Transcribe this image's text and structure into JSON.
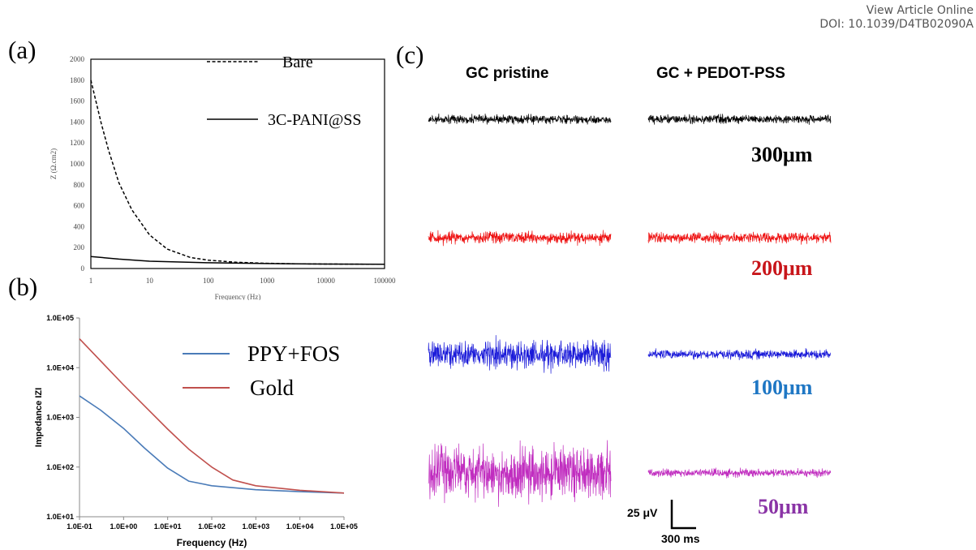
{
  "header": {
    "view_article": "View Article Online",
    "doi": "DOI: 10.1039/D4TB02090A"
  },
  "panels": {
    "a": "(a)",
    "b": "(b)",
    "c": "(c)"
  },
  "chart_data": [
    {
      "panel": "a",
      "type": "line",
      "xscale": "log",
      "xlabel": "Frequency (Hz)",
      "ylabel": "Z (Ω.cm2)",
      "xlim": [
        1,
        100000
      ],
      "ylim": [
        0,
        2000
      ],
      "xticks": [
        1,
        10,
        100,
        1000,
        10000,
        100000
      ],
      "xtick_labels": [
        "1",
        "10",
        "100",
        "1000",
        "10000",
        "100000"
      ],
      "yticks": [
        0,
        200,
        400,
        600,
        800,
        1000,
        1200,
        1400,
        1600,
        1800,
        2000
      ],
      "ytick_labels": [
        "0",
        "200",
        "400",
        "600",
        "800",
        "1000",
        "1200",
        "1400",
        "1600",
        "1800",
        "2000"
      ],
      "legend_position": "top-right",
      "series": [
        {
          "name": "Bare",
          "style": "dashed",
          "color": "#000000",
          "x": [
            1,
            1.5,
            2,
            3,
            5,
            10,
            20,
            50,
            100,
            300,
            1000,
            3000,
            10000,
            100000
          ],
          "y": [
            1800,
            1390,
            1130,
            820,
            560,
            320,
            185,
            105,
            80,
            60,
            50,
            45,
            43,
            40
          ]
        },
        {
          "name": "3C-PANI@SS",
          "style": "solid",
          "color": "#000000",
          "x": [
            1,
            3,
            10,
            100,
            1000,
            10000,
            100000
          ],
          "y": [
            115,
            90,
            70,
            55,
            47,
            43,
            40
          ]
        }
      ]
    },
    {
      "panel": "b",
      "type": "line",
      "xscale": "log",
      "yscale": "log",
      "xlabel": "Frequency (Hz)",
      "ylabel": "Impedance IZI",
      "xlim": [
        0.1,
        100000
      ],
      "ylim": [
        10,
        100000
      ],
      "xticks": [
        0.1,
        1,
        10,
        100,
        1000,
        10000,
        100000
      ],
      "xtick_labels": [
        "1.0E-01",
        "1.0E+00",
        "1.0E+01",
        "1.0E+02",
        "1.0E+03",
        "1.0E+04",
        "1.0E+05"
      ],
      "yticks": [
        10,
        100,
        1000,
        10000,
        100000
      ],
      "ytick_labels": [
        "1.0E+01",
        "1.0E+02",
        "1.0E+03",
        "1.0E+04",
        "1.0E+05"
      ],
      "legend_position": "top-right",
      "series": [
        {
          "name": "PPY+FOS",
          "color": "#4a7bb8",
          "x": [
            0.1,
            0.3,
            1,
            3,
            10,
            30,
            100,
            1000,
            10000,
            100000
          ],
          "y": [
            2700,
            1400,
            600,
            240,
            95,
            52,
            42,
            35,
            32,
            30
          ]
        },
        {
          "name": "Gold",
          "color": "#c0504d",
          "x": [
            0.1,
            1,
            10,
            30,
            100,
            300,
            1000,
            10000,
            100000
          ],
          "y": [
            38000,
            4500,
            580,
            230,
            100,
            55,
            42,
            34,
            30
          ]
        }
      ]
    }
  ],
  "panel_c": {
    "columns": [
      "GC pristine",
      "GC + PEDOT-PSS"
    ],
    "rows": [
      {
        "label": "300μm",
        "color": "#000000",
        "amp_pristine": 12,
        "amp_pedot": 12
      },
      {
        "label": "200μm",
        "color": "#ee1111",
        "amp_pristine": 16,
        "amp_pedot": 15
      },
      {
        "label": "100μm",
        "color": "#1a1ad9",
        "amp_pristine": 36,
        "amp_pedot": 13
      },
      {
        "label": "50μm",
        "color": "#c02cbf",
        "amp_pristine": 70,
        "amp_pedot": 11
      }
    ],
    "label_colors": [
      "#000000",
      "#c8151a",
      "#1f77c4",
      "#8a34a6"
    ],
    "scalebar": {
      "voltage": "25 μV",
      "time": "300 ms"
    }
  }
}
